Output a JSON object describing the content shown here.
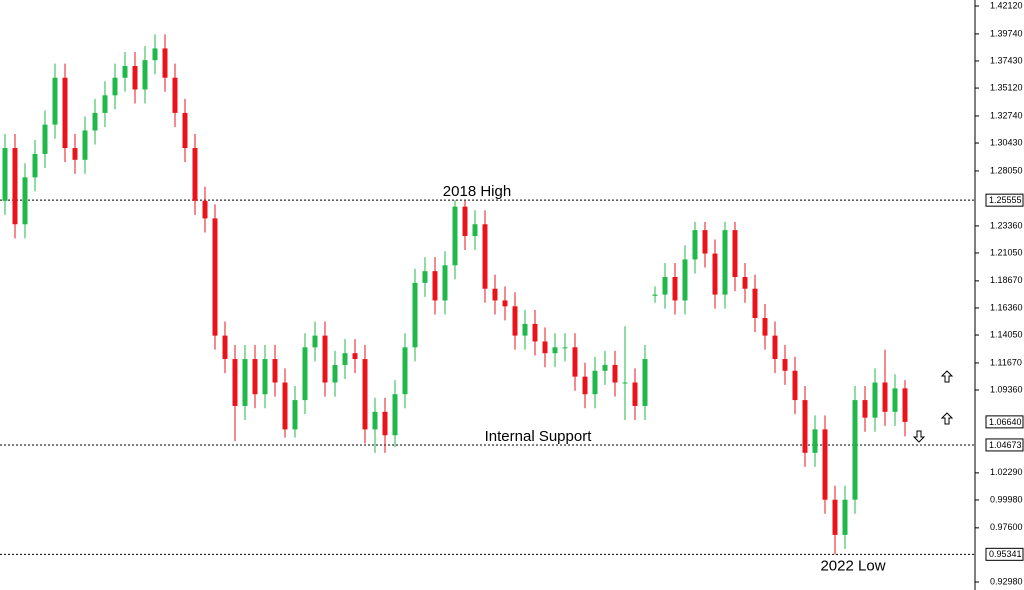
{
  "chart_data": {
    "type": "candlestick",
    "up_color": "#20b84a",
    "down_color": "#e8141c",
    "ylim": [
      0.9298,
      1.4212
    ],
    "yticks": [
      {
        "value": 1.4212,
        "label": "1.42120"
      },
      {
        "value": 1.3974,
        "label": "1.39740"
      },
      {
        "value": 1.3743,
        "label": "1.37430"
      },
      {
        "value": 1.3512,
        "label": "1.35120"
      },
      {
        "value": 1.3274,
        "label": "1.32740"
      },
      {
        "value": 1.3043,
        "label": "1.30430"
      },
      {
        "value": 1.2805,
        "label": "1.28050"
      },
      {
        "value": 1.2336,
        "label": "1.23360"
      },
      {
        "value": 1.2105,
        "label": "1.21050"
      },
      {
        "value": 1.1867,
        "label": "1.18670"
      },
      {
        "value": 1.1636,
        "label": "1.16360"
      },
      {
        "value": 1.1405,
        "label": "1.14050"
      },
      {
        "value": 1.1167,
        "label": "1.11670"
      },
      {
        "value": 1.0936,
        "label": "1.09360"
      },
      {
        "value": 1.0229,
        "label": "1.02290"
      },
      {
        "value": 0.9998,
        "label": "0.99980"
      },
      {
        "value": 0.976,
        "label": "0.97600"
      },
      {
        "value": 0.9298,
        "label": "0.92980"
      }
    ],
    "levels": [
      {
        "value": 1.25555,
        "label": "1.25555",
        "text": "2018 High"
      },
      {
        "value": 1.04673,
        "label": "1.04673",
        "text": "Internal Support"
      },
      {
        "value": 0.95341,
        "label": "0.95341",
        "text": "2022 Low"
      }
    ],
    "last_price": {
      "value": 1.0664,
      "label": "1.06640"
    },
    "open": [
      1.255,
      1.3,
      1.235,
      1.275,
      1.295,
      1.32,
      1.36,
      1.3,
      1.29,
      1.315,
      1.33,
      1.345,
      1.36,
      1.37,
      1.35,
      1.375,
      1.385,
      1.36,
      1.33,
      1.3,
      1.255,
      1.24,
      1.14,
      1.12,
      1.08,
      1.12,
      1.09,
      1.12,
      1.1,
      1.06,
      1.085,
      1.13,
      1.14,
      1.1,
      1.115,
      1.125,
      1.12,
      1.06,
      1.075,
      1.055,
      1.09,
      1.13,
      1.185,
      1.195,
      1.17,
      1.2,
      1.25,
      1.225,
      1.235,
      1.18,
      1.17,
      1.165,
      1.14,
      1.15,
      1.135,
      1.125,
      1.13,
      1.13,
      1.105,
      1.09,
      1.11,
      1.115,
      1.1,
      1.1,
      1.08,
      1.174,
      1.175,
      1.19,
      1.17,
      1.205,
      1.23,
      1.21,
      1.175,
      1.23,
      1.19,
      1.18,
      1.155,
      1.14,
      1.12,
      1.11,
      1.085,
      1.04,
      1.06,
      1.0,
      0.97,
      1.0,
      1.085,
      1.07,
      1.1,
      1.075,
      1.095
    ],
    "high": [
      1.312,
      1.312,
      1.287,
      1.307,
      1.332,
      1.372,
      1.372,
      1.312,
      1.327,
      1.342,
      1.357,
      1.372,
      1.382,
      1.382,
      1.387,
      1.397,
      1.397,
      1.372,
      1.342,
      1.312,
      1.267,
      1.252,
      1.152,
      1.132,
      1.132,
      1.132,
      1.132,
      1.132,
      1.112,
      1.097,
      1.142,
      1.152,
      1.152,
      1.127,
      1.137,
      1.137,
      1.132,
      1.087,
      1.087,
      1.102,
      1.142,
      1.197,
      1.207,
      1.207,
      1.212,
      1.2555,
      1.255,
      1.247,
      1.247,
      1.192,
      1.182,
      1.177,
      1.162,
      1.162,
      1.147,
      1.142,
      1.142,
      1.142,
      1.117,
      1.122,
      1.127,
      1.127,
      1.148,
      1.112,
      1.132,
      1.182,
      1.202,
      1.202,
      1.217,
      1.237,
      1.237,
      1.222,
      1.237,
      1.237,
      1.202,
      1.192,
      1.167,
      1.152,
      1.132,
      1.122,
      1.097,
      1.072,
      1.072,
      1.012,
      1.012,
      1.097,
      1.097,
      1.112,
      1.128,
      1.107,
      1.102
    ],
    "low": [
      1.243,
      1.223,
      1.223,
      1.263,
      1.283,
      1.308,
      1.288,
      1.278,
      1.278,
      1.303,
      1.318,
      1.333,
      1.348,
      1.338,
      1.338,
      1.363,
      1.348,
      1.318,
      1.288,
      1.243,
      1.228,
      1.128,
      1.108,
      1.05,
      1.068,
      1.078,
      1.078,
      1.088,
      1.053,
      1.053,
      1.073,
      1.118,
      1.088,
      1.088,
      1.103,
      1.108,
      1.048,
      1.04,
      1.04,
      1.045,
      1.078,
      1.118,
      1.173,
      1.158,
      1.158,
      1.188,
      1.213,
      1.213,
      1.168,
      1.158,
      1.153,
      1.128,
      1.128,
      1.123,
      1.113,
      1.113,
      1.118,
      1.093,
      1.078,
      1.078,
      1.098,
      1.088,
      1.068,
      1.068,
      1.068,
      1.168,
      1.163,
      1.158,
      1.158,
      1.193,
      1.198,
      1.163,
      1.163,
      1.178,
      1.168,
      1.143,
      1.128,
      1.108,
      1.098,
      1.073,
      1.028,
      1.028,
      0.988,
      0.9534,
      0.958,
      0.988,
      1.058,
      1.058,
      1.063,
      1.063,
      1.054
    ],
    "close": [
      1.3,
      1.235,
      1.275,
      1.295,
      1.32,
      1.36,
      1.3,
      1.29,
      1.315,
      1.33,
      1.345,
      1.36,
      1.37,
      1.35,
      1.375,
      1.385,
      1.36,
      1.33,
      1.3,
      1.255,
      1.24,
      1.14,
      1.12,
      1.08,
      1.12,
      1.09,
      1.12,
      1.1,
      1.06,
      1.085,
      1.13,
      1.14,
      1.1,
      1.115,
      1.125,
      1.12,
      1.06,
      1.075,
      1.055,
      1.09,
      1.13,
      1.185,
      1.195,
      1.17,
      1.2,
      1.25,
      1.225,
      1.235,
      1.18,
      1.17,
      1.165,
      1.14,
      1.15,
      1.135,
      1.125,
      1.13,
      1.13,
      1.105,
      1.09,
      1.11,
      1.115,
      1.1,
      1.1,
      1.08,
      1.12,
      1.175,
      1.19,
      1.17,
      1.205,
      1.23,
      1.21,
      1.175,
      1.23,
      1.19,
      1.18,
      1.155,
      1.14,
      1.12,
      1.11,
      1.085,
      1.04,
      1.06,
      1.0,
      0.97,
      1.0,
      1.085,
      1.07,
      1.1,
      1.075,
      1.095,
      1.0664
    ]
  }
}
